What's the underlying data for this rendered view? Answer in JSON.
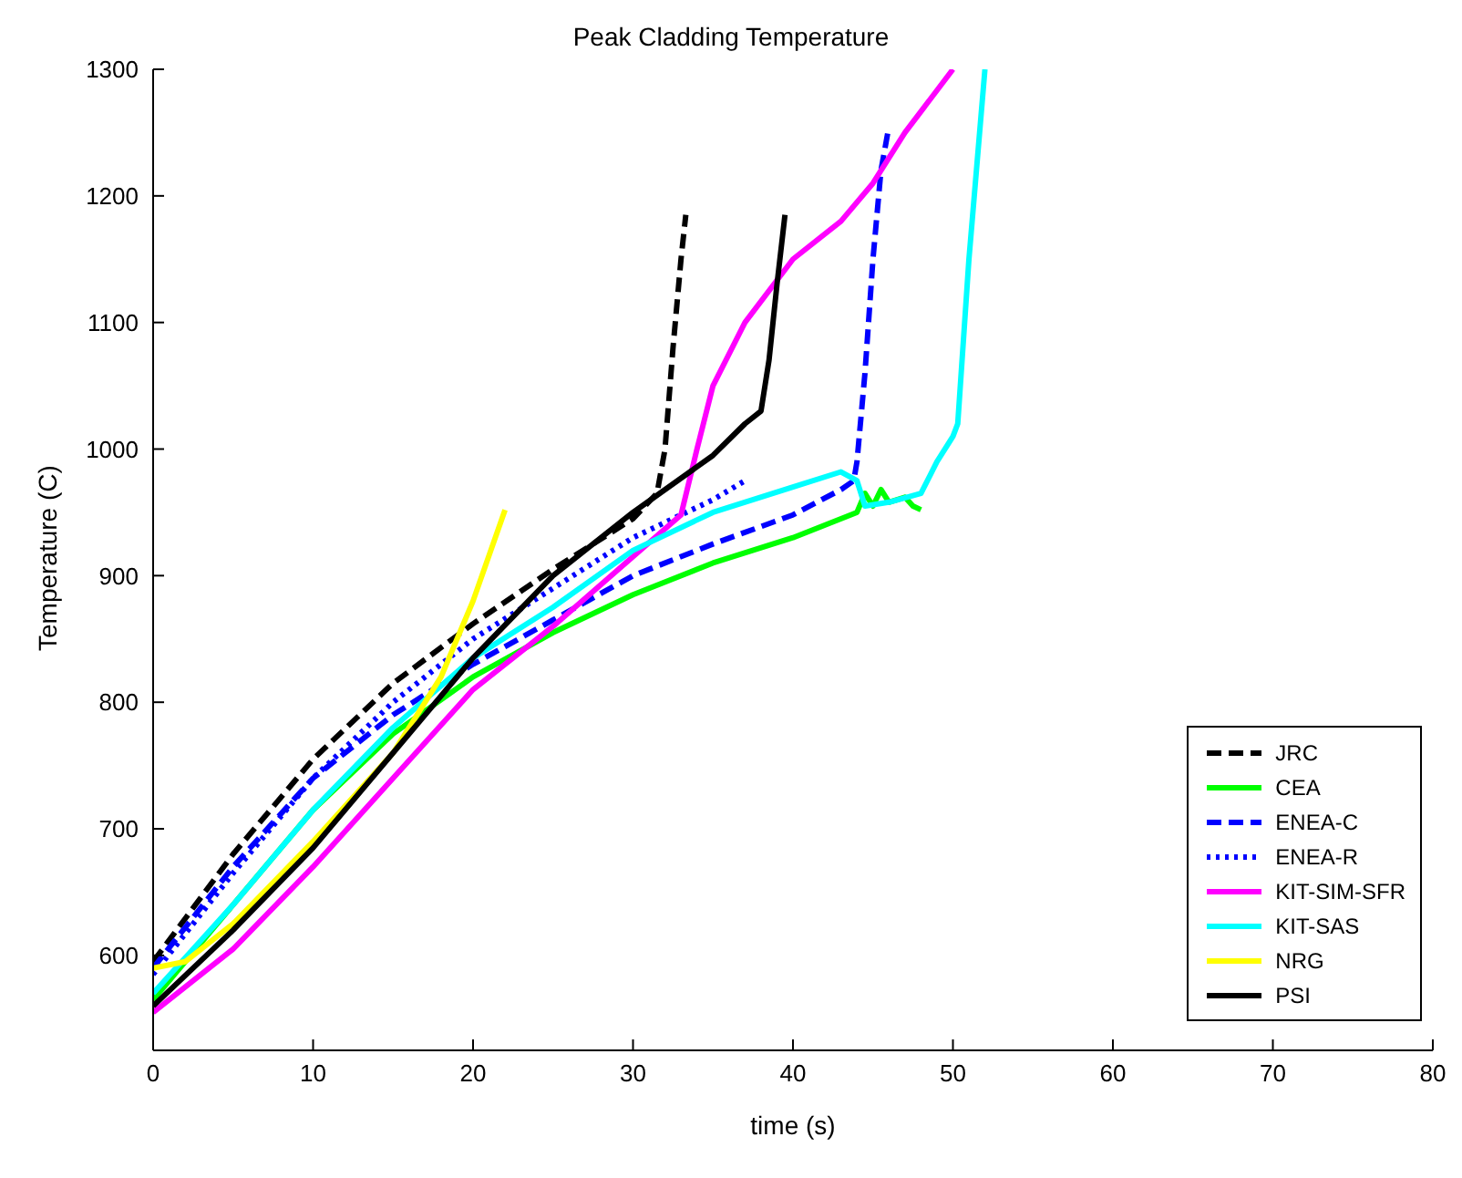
{
  "chart_data": {
    "type": "line",
    "title": "Peak Cladding Temperature",
    "xlabel": "time (s)",
    "ylabel": "Temperature (C)",
    "xlim": [
      0,
      80
    ],
    "xticks": [
      0,
      10,
      20,
      30,
      40,
      50,
      60,
      70,
      80
    ],
    "ylim": [
      525,
      1300
    ],
    "yticks": [
      600,
      700,
      800,
      900,
      1000,
      1100,
      1200,
      1300
    ],
    "grid": false,
    "legend": "bottom right",
    "marker": "none",
    "series": [
      {
        "name": "JRC",
        "color": "#000000",
        "line_style": "dashed",
        "x": [
          0,
          5,
          10,
          15,
          20,
          25,
          30,
          31.5,
          32,
          32.5,
          33,
          33.3
        ],
        "values": [
          595,
          680,
          755,
          815,
          862,
          905,
          945,
          965,
          1000,
          1080,
          1150,
          1185
        ]
      },
      {
        "name": "CEA",
        "color": "#00ff00",
        "line_style": "solid",
        "x": [
          0,
          5,
          10,
          15,
          20,
          25,
          30,
          35,
          40,
          44,
          44.5,
          45,
          45.5,
          46,
          47,
          47.5,
          48
        ],
        "values": [
          565,
          640,
          715,
          775,
          820,
          855,
          885,
          910,
          930,
          950,
          965,
          955,
          968,
          958,
          962,
          955,
          952
        ]
      },
      {
        "name": "ENEA-C",
        "color": "#0000ff",
        "line_style": "dashed",
        "x": [
          0,
          5,
          10,
          15,
          20,
          25,
          30,
          35,
          40,
          43,
          43.8,
          44,
          44.5,
          45,
          45.5,
          46
        ],
        "values": [
          590,
          670,
          740,
          790,
          830,
          865,
          900,
          925,
          948,
          968,
          975,
          990,
          1060,
          1150,
          1220,
          1255
        ]
      },
      {
        "name": "ENEA-R",
        "color": "#0000ff",
        "line_style": "dotted",
        "x": [
          0,
          5,
          10,
          15,
          20,
          25,
          30,
          35,
          37
        ],
        "values": [
          585,
          665,
          740,
          800,
          850,
          890,
          930,
          960,
          975
        ]
      },
      {
        "name": "KIT-SIM-SFR",
        "color": "#ff00ff",
        "line_style": "solid",
        "x": [
          0,
          5,
          10,
          15,
          20,
          25,
          30,
          33,
          34,
          35,
          37,
          40,
          43,
          45,
          47,
          50
        ],
        "values": [
          555,
          605,
          670,
          740,
          810,
          860,
          915,
          948,
          1000,
          1050,
          1100,
          1150,
          1180,
          1210,
          1250,
          1300
        ]
      },
      {
        "name": "KIT-SAS",
        "color": "#00ffff",
        "line_style": "solid",
        "x": [
          0,
          5,
          10,
          15,
          20,
          25,
          30,
          35,
          40,
          43,
          44,
          44.5,
          46,
          48,
          49,
          50,
          50.3,
          51,
          52
        ],
        "values": [
          570,
          640,
          715,
          780,
          835,
          875,
          920,
          950,
          970,
          982,
          975,
          955,
          958,
          965,
          990,
          1010,
          1020,
          1150,
          1300
        ]
      },
      {
        "name": "NRG",
        "color": "#ffff00",
        "line_style": "solid",
        "x": [
          0,
          2,
          5,
          10,
          15,
          18,
          20,
          22
        ],
        "values": [
          590,
          595,
          625,
          690,
          760,
          820,
          880,
          952
        ]
      },
      {
        "name": "PSI",
        "color": "#000000",
        "line_style": "solid",
        "x": [
          0,
          5,
          10,
          15,
          20,
          25,
          30,
          35,
          37,
          38,
          38.5,
          39,
          39.5
        ],
        "values": [
          560,
          620,
          685,
          760,
          835,
          900,
          950,
          995,
          1020,
          1030,
          1070,
          1130,
          1185
        ]
      }
    ]
  }
}
